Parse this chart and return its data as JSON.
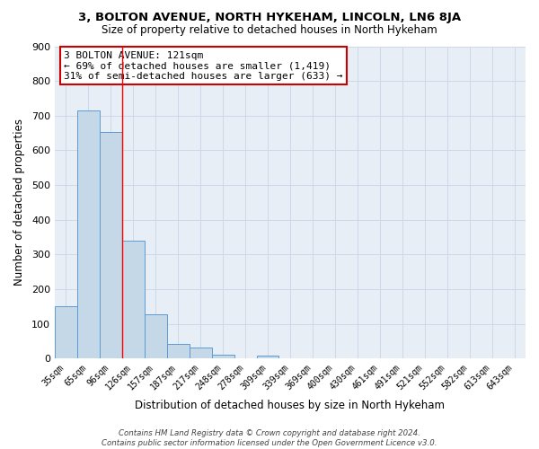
{
  "title": "3, BOLTON AVENUE, NORTH HYKEHAM, LINCOLN, LN6 8JA",
  "subtitle": "Size of property relative to detached houses in North Hykeham",
  "xlabel": "Distribution of detached houses by size in North Hykeham",
  "ylabel": "Number of detached properties",
  "bar_labels": [
    "35sqm",
    "65sqm",
    "96sqm",
    "126sqm",
    "157sqm",
    "187sqm",
    "217sqm",
    "248sqm",
    "278sqm",
    "309sqm",
    "339sqm",
    "369sqm",
    "400sqm",
    "430sqm",
    "461sqm",
    "491sqm",
    "521sqm",
    "552sqm",
    "582sqm",
    "613sqm",
    "643sqm"
  ],
  "bar_values": [
    152,
    715,
    653,
    340,
    127,
    42,
    33,
    12,
    0,
    8,
    0,
    0,
    0,
    0,
    0,
    0,
    0,
    0,
    0,
    0,
    0
  ],
  "bar_color": "#c5d8e8",
  "bar_edge_color": "#5b9bd5",
  "grid_color": "#ccd9e8",
  "background_color": "#e8eef5",
  "red_line_x": 2.5,
  "ylim": [
    0,
    900
  ],
  "yticks": [
    0,
    100,
    200,
    300,
    400,
    500,
    600,
    700,
    800,
    900
  ],
  "annotation_title": "3 BOLTON AVENUE: 121sqm",
  "annotation_line1": "← 69% of detached houses are smaller (1,419)",
  "annotation_line2": "31% of semi-detached houses are larger (633) →",
  "annotation_box_facecolor": "#ffffff",
  "annotation_box_edgecolor": "#cc0000",
  "footer_line1": "Contains HM Land Registry data © Crown copyright and database right 2024.",
  "footer_line2": "Contains public sector information licensed under the Open Government Licence v3.0."
}
